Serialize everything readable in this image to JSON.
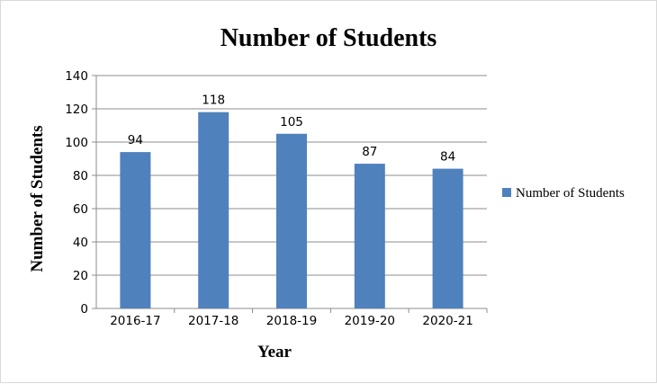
{
  "chart_data": {
    "type": "bar",
    "title": "Number of Students",
    "xlabel": "Year",
    "ylabel": "Number of Students",
    "categories": [
      "2016-17",
      "2017-18",
      "2018-19",
      "2019-20",
      "2020-21"
    ],
    "series": [
      {
        "name": "Number of Students",
        "values": [
          94,
          118,
          105,
          87,
          84
        ]
      }
    ],
    "ylim": [
      0,
      140
    ],
    "yticks": [
      "0",
      "20",
      "40",
      "60",
      "80",
      "100",
      "120",
      "140"
    ],
    "grid": true,
    "legend": "right",
    "colors": {
      "bar": "#4f81bd",
      "grid": "#8c8c8c",
      "axis": "#8c8c8c"
    }
  }
}
